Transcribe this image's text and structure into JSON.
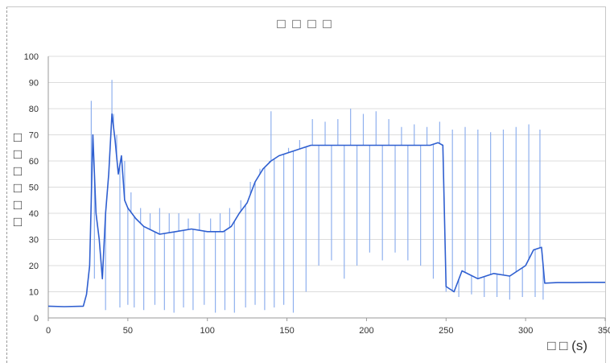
{
  "chart_data": {
    "type": "line",
    "title": "□ □ □ □",
    "ylabel": "□ □ □ □ □ □",
    "xlabel": "□ □ (s)",
    "xlim": [
      0,
      350
    ],
    "ylim": [
      0,
      100
    ],
    "xticks": [
      "0",
      "50",
      "100",
      "150",
      "200",
      "250",
      "300",
      "350"
    ],
    "yticks": [
      "0",
      "10",
      "20",
      "30",
      "40",
      "50",
      "60",
      "70",
      "80",
      "90",
      "100"
    ],
    "grid": "horizontal",
    "legend": "none",
    "colors": {
      "line": "#2f5fd0",
      "line_light": "#8fb0ee",
      "grid": "#dcdcdc",
      "axis": "#9a9a9a"
    },
    "series": [
      {
        "x": [
          0,
          10,
          22,
          24,
          26,
          28,
          30,
          32,
          34,
          36,
          38,
          40,
          42,
          44,
          46,
          48,
          50,
          55,
          60,
          70,
          80,
          90,
          100,
          110,
          115,
          120,
          125,
          130,
          135,
          140,
          145,
          150,
          155,
          160,
          165,
          170,
          180,
          200,
          220,
          240,
          245,
          248,
          250,
          255,
          260,
          270,
          280,
          290,
          300,
          305,
          310,
          312,
          320,
          330,
          340,
          350
        ],
        "y": [
          4.5,
          4.3,
          4.5,
          9,
          20,
          70,
          40,
          30,
          15,
          40,
          55,
          78,
          68,
          55,
          62,
          45,
          42,
          38,
          35,
          32,
          33,
          34,
          33,
          33,
          35,
          40,
          44,
          52,
          57,
          60,
          62,
          63,
          64,
          65,
          66,
          66,
          66,
          66,
          66,
          66,
          67,
          66,
          12,
          10,
          18,
          15,
          17,
          16,
          20,
          26,
          27,
          13.3,
          13.5,
          13.5,
          13.6,
          13.6
        ]
      }
    ],
    "spikes": [
      [
        27,
        83
      ],
      [
        29,
        15
      ],
      [
        36,
        3
      ],
      [
        40,
        91
      ],
      [
        41,
        78
      ],
      [
        43,
        70
      ],
      [
        45,
        4
      ],
      [
        48,
        60
      ],
      [
        50,
        5
      ],
      [
        52,
        48
      ],
      [
        54,
        4
      ],
      [
        58,
        42
      ],
      [
        60,
        3
      ],
      [
        64,
        40
      ],
      [
        67,
        5
      ],
      [
        70,
        42
      ],
      [
        73,
        3
      ],
      [
        76,
        40
      ],
      [
        79,
        2
      ],
      [
        82,
        40
      ],
      [
        85,
        4
      ],
      [
        88,
        38
      ],
      [
        91,
        3
      ],
      [
        95,
        40
      ],
      [
        98,
        5
      ],
      [
        102,
        38
      ],
      [
        105,
        2
      ],
      [
        108,
        40
      ],
      [
        111,
        3
      ],
      [
        114,
        42
      ],
      [
        117,
        2
      ],
      [
        121,
        45
      ],
      [
        124,
        4
      ],
      [
        127,
        52
      ],
      [
        130,
        5
      ],
      [
        133,
        57
      ],
      [
        136,
        3
      ],
      [
        139,
        60
      ],
      [
        140,
        79
      ],
      [
        142,
        4
      ],
      [
        145,
        62
      ],
      [
        148,
        5
      ],
      [
        151,
        65
      ],
      [
        154,
        2
      ],
      [
        158,
        68
      ],
      [
        162,
        10
      ],
      [
        166,
        76
      ],
      [
        170,
        20
      ],
      [
        174,
        75
      ],
      [
        178,
        22
      ],
      [
        182,
        76
      ],
      [
        186,
        15
      ],
      [
        190,
        80
      ],
      [
        194,
        20
      ],
      [
        198,
        78
      ],
      [
        202,
        25
      ],
      [
        206,
        79
      ],
      [
        210,
        22
      ],
      [
        214,
        76
      ],
      [
        218,
        25
      ],
      [
        222,
        73
      ],
      [
        226,
        22
      ],
      [
        230,
        74
      ],
      [
        234,
        20
      ],
      [
        238,
        73
      ],
      [
        242,
        15
      ],
      [
        246,
        75
      ],
      [
        250,
        10
      ],
      [
        254,
        72
      ],
      [
        258,
        8
      ],
      [
        262,
        73
      ],
      [
        266,
        9
      ],
      [
        270,
        72
      ],
      [
        274,
        8
      ],
      [
        278,
        71
      ],
      [
        282,
        8
      ],
      [
        286,
        72
      ],
      [
        290,
        7
      ],
      [
        294,
        73
      ],
      [
        298,
        8
      ],
      [
        302,
        74
      ],
      [
        306,
        8
      ],
      [
        309,
        72
      ],
      [
        311,
        7
      ]
    ]
  }
}
